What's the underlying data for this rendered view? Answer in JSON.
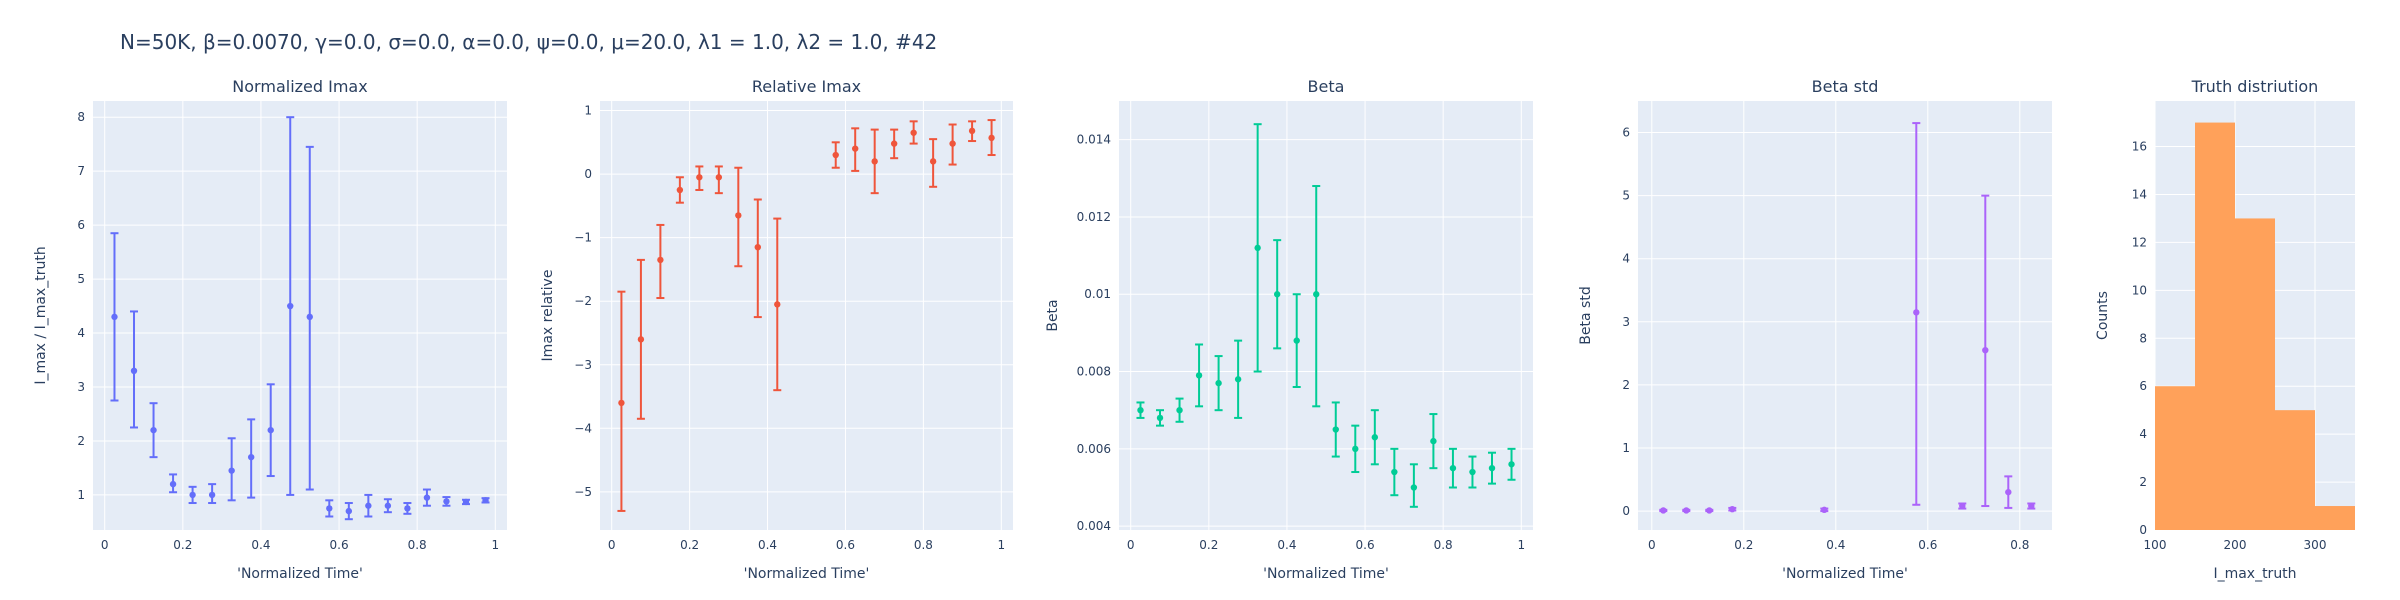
{
  "main_title": "N=50K, β=0.0070, γ=0.0, σ=0.0,  α=0.0, ψ=0.0, μ=20.0, λ1 = 1.0, λ2 = 1.0, #42",
  "colors": {
    "plot_bg": "#E5ECF6",
    "grid": "#FFFFFF",
    "text": "#2a3f5f",
    "normalized": "#636EFA",
    "relative": "#EF553B",
    "beta": "#00CC96",
    "beta_std": "#AB63FA",
    "hist": "#FFA15A"
  },
  "chart_data": [
    {
      "type": "scatter",
      "title": "Normalized Imax",
      "xlabel": "'Normalized Time'",
      "ylabel": "I_max / I_max_truth",
      "xlim": [
        -0.03,
        1.03
      ],
      "ylim": [
        0.35,
        8.3
      ],
      "xticks": [
        0,
        0.2,
        0.4,
        0.6,
        0.8,
        1
      ],
      "xtick_labels": [
        "0",
        "0.2",
        "0.4",
        "0.6",
        "0.8",
        "1"
      ],
      "yticks": [
        1,
        2,
        3,
        4,
        5,
        6,
        7,
        8
      ],
      "ytick_labels": [
        "1",
        "2",
        "3",
        "4",
        "5",
        "6",
        "7",
        "8"
      ],
      "grid": true,
      "color_key": "normalized",
      "points": [
        {
          "x": 0.025,
          "y": 4.3,
          "lo": 2.75,
          "hi": 5.85
        },
        {
          "x": 0.075,
          "y": 3.3,
          "lo": 2.25,
          "hi": 4.4
        },
        {
          "x": 0.125,
          "y": 2.2,
          "lo": 1.7,
          "hi": 2.7
        },
        {
          "x": 0.175,
          "y": 1.2,
          "lo": 1.05,
          "hi": 1.38
        },
        {
          "x": 0.225,
          "y": 1.0,
          "lo": 0.85,
          "hi": 1.15
        },
        {
          "x": 0.275,
          "y": 1.0,
          "lo": 0.85,
          "hi": 1.2
        },
        {
          "x": 0.325,
          "y": 1.45,
          "lo": 0.9,
          "hi": 2.05
        },
        {
          "x": 0.375,
          "y": 1.7,
          "lo": 0.95,
          "hi": 2.4
        },
        {
          "x": 0.425,
          "y": 2.2,
          "lo": 1.35,
          "hi": 3.05
        },
        {
          "x": 0.475,
          "y": 4.5,
          "lo": 1.0,
          "hi": 8.0
        },
        {
          "x": 0.525,
          "y": 4.3,
          "lo": 1.1,
          "hi": 7.45
        },
        {
          "x": 0.575,
          "y": 0.75,
          "lo": 0.6,
          "hi": 0.9
        },
        {
          "x": 0.625,
          "y": 0.7,
          "lo": 0.55,
          "hi": 0.85
        },
        {
          "x": 0.675,
          "y": 0.8,
          "lo": 0.6,
          "hi": 1.0
        },
        {
          "x": 0.725,
          "y": 0.8,
          "lo": 0.68,
          "hi": 0.92
        },
        {
          "x": 0.775,
          "y": 0.75,
          "lo": 0.65,
          "hi": 0.85
        },
        {
          "x": 0.825,
          "y": 0.95,
          "lo": 0.8,
          "hi": 1.1
        },
        {
          "x": 0.875,
          "y": 0.88,
          "lo": 0.8,
          "hi": 0.96
        },
        {
          "x": 0.925,
          "y": 0.87,
          "lo": 0.83,
          "hi": 0.91
        },
        {
          "x": 0.975,
          "y": 0.9,
          "lo": 0.86,
          "hi": 0.94
        }
      ]
    },
    {
      "type": "scatter",
      "title": "Relative Imax",
      "xlabel": "'Normalized Time'",
      "ylabel": "Imax relative",
      "xlim": [
        -0.03,
        1.03
      ],
      "ylim": [
        -5.6,
        1.15
      ],
      "xticks": [
        0,
        0.2,
        0.4,
        0.6,
        0.8,
        1
      ],
      "xtick_labels": [
        "0",
        "0.2",
        "0.4",
        "0.6",
        "0.8",
        "1"
      ],
      "yticks": [
        -5,
        -4,
        -3,
        -2,
        -1,
        0,
        1
      ],
      "ytick_labels": [
        "−5",
        "−4",
        "−3",
        "−2",
        "−1",
        "0",
        "1"
      ],
      "grid": true,
      "color_key": "relative",
      "points": [
        {
          "x": 0.025,
          "y": -3.6,
          "lo": -5.3,
          "hi": -1.85
        },
        {
          "x": 0.075,
          "y": -2.6,
          "lo": -3.85,
          "hi": -1.35
        },
        {
          "x": 0.125,
          "y": -1.35,
          "lo": -1.95,
          "hi": -0.8
        },
        {
          "x": 0.175,
          "y": -0.25,
          "lo": -0.45,
          "hi": -0.05
        },
        {
          "x": 0.225,
          "y": -0.05,
          "lo": -0.25,
          "hi": 0.12
        },
        {
          "x": 0.275,
          "y": -0.05,
          "lo": -0.3,
          "hi": 0.12
        },
        {
          "x": 0.325,
          "y": -0.65,
          "lo": -1.45,
          "hi": 0.1
        },
        {
          "x": 0.375,
          "y": -1.15,
          "lo": -2.25,
          "hi": -0.4
        },
        {
          "x": 0.425,
          "y": -2.05,
          "lo": -3.4,
          "hi": -0.7
        },
        {
          "x": 0.575,
          "y": 0.3,
          "lo": 0.1,
          "hi": 0.5
        },
        {
          "x": 0.625,
          "y": 0.4,
          "lo": 0.05,
          "hi": 0.72
        },
        {
          "x": 0.675,
          "y": 0.2,
          "lo": -0.3,
          "hi": 0.7
        },
        {
          "x": 0.725,
          "y": 0.48,
          "lo": 0.25,
          "hi": 0.7
        },
        {
          "x": 0.775,
          "y": 0.65,
          "lo": 0.48,
          "hi": 0.83
        },
        {
          "x": 0.825,
          "y": 0.2,
          "lo": -0.2,
          "hi": 0.55
        },
        {
          "x": 0.875,
          "y": 0.48,
          "lo": 0.15,
          "hi": 0.78
        },
        {
          "x": 0.925,
          "y": 0.68,
          "lo": 0.52,
          "hi": 0.83
        },
        {
          "x": 0.975,
          "y": 0.57,
          "lo": 0.3,
          "hi": 0.85
        }
      ]
    },
    {
      "type": "scatter",
      "title": "Beta",
      "xlabel": "'Normalized Time'",
      "ylabel": "Beta",
      "xlim": [
        -0.03,
        1.03
      ],
      "ylim": [
        0.0039,
        0.015
      ],
      "xticks": [
        0,
        0.2,
        0.4,
        0.6,
        0.8,
        1
      ],
      "xtick_labels": [
        "0",
        "0.2",
        "0.4",
        "0.6",
        "0.8",
        "1"
      ],
      "yticks": [
        0.004,
        0.006,
        0.008,
        0.01,
        0.012,
        0.014
      ],
      "ytick_labels": [
        "0.004",
        "0.006",
        "0.008",
        "0.01",
        "0.012",
        "0.014"
      ],
      "grid": true,
      "color_key": "beta",
      "points": [
        {
          "x": 0.025,
          "y": 0.007,
          "lo": 0.0068,
          "hi": 0.0072
        },
        {
          "x": 0.075,
          "y": 0.0068,
          "lo": 0.0066,
          "hi": 0.007
        },
        {
          "x": 0.125,
          "y": 0.007,
          "lo": 0.0067,
          "hi": 0.0073
        },
        {
          "x": 0.175,
          "y": 0.0079,
          "lo": 0.0071,
          "hi": 0.0087
        },
        {
          "x": 0.225,
          "y": 0.0077,
          "lo": 0.007,
          "hi": 0.0084
        },
        {
          "x": 0.275,
          "y": 0.0078,
          "lo": 0.0068,
          "hi": 0.0088
        },
        {
          "x": 0.325,
          "y": 0.0112,
          "lo": 0.008,
          "hi": 0.0144
        },
        {
          "x": 0.375,
          "y": 0.01,
          "lo": 0.0086,
          "hi": 0.0114
        },
        {
          "x": 0.425,
          "y": 0.0088,
          "lo": 0.0076,
          "hi": 0.01
        },
        {
          "x": 0.475,
          "y": 0.01,
          "lo": 0.0071,
          "hi": 0.0128
        },
        {
          "x": 0.525,
          "y": 0.0065,
          "lo": 0.0058,
          "hi": 0.0072
        },
        {
          "x": 0.575,
          "y": 0.006,
          "lo": 0.0054,
          "hi": 0.0066
        },
        {
          "x": 0.625,
          "y": 0.0063,
          "lo": 0.0056,
          "hi": 0.007
        },
        {
          "x": 0.675,
          "y": 0.0054,
          "lo": 0.0048,
          "hi": 0.006
        },
        {
          "x": 0.725,
          "y": 0.005,
          "lo": 0.0045,
          "hi": 0.0056
        },
        {
          "x": 0.775,
          "y": 0.0062,
          "lo": 0.0055,
          "hi": 0.0069
        },
        {
          "x": 0.825,
          "y": 0.0055,
          "lo": 0.005,
          "hi": 0.006
        },
        {
          "x": 0.875,
          "y": 0.0054,
          "lo": 0.005,
          "hi": 0.0058
        },
        {
          "x": 0.925,
          "y": 0.0055,
          "lo": 0.0051,
          "hi": 0.0059
        },
        {
          "x": 0.975,
          "y": 0.0056,
          "lo": 0.0052,
          "hi": 0.006
        }
      ]
    },
    {
      "type": "scatter",
      "title": "Beta std",
      "xlabel": "'Normalized Time'",
      "ylabel": "Beta std",
      "xlim": [
        -0.03,
        0.87
      ],
      "ylim": [
        -0.3,
        6.5
      ],
      "xticks": [
        0,
        0.2,
        0.4,
        0.6,
        0.8
      ],
      "xtick_labels": [
        "0",
        "0.2",
        "0.4",
        "0.6",
        "0.8"
      ],
      "yticks": [
        0,
        1,
        2,
        3,
        4,
        5,
        6
      ],
      "ytick_labels": [
        "0",
        "1",
        "2",
        "3",
        "4",
        "5",
        "6"
      ],
      "grid": true,
      "color_key": "beta_std",
      "points": [
        {
          "x": 0.025,
          "y": 0.01,
          "lo": 0.0,
          "hi": 0.02
        },
        {
          "x": 0.075,
          "y": 0.01,
          "lo": 0.0,
          "hi": 0.02
        },
        {
          "x": 0.125,
          "y": 0.01,
          "lo": 0.0,
          "hi": 0.02
        },
        {
          "x": 0.175,
          "y": 0.03,
          "lo": 0.01,
          "hi": 0.05
        },
        {
          "x": 0.375,
          "y": 0.02,
          "lo": 0.0,
          "hi": 0.04
        },
        {
          "x": 0.575,
          "y": 3.15,
          "lo": 0.1,
          "hi": 6.15
        },
        {
          "x": 0.675,
          "y": 0.08,
          "lo": 0.04,
          "hi": 0.12
        },
        {
          "x": 0.725,
          "y": 2.55,
          "lo": 0.08,
          "hi": 5.0
        },
        {
          "x": 0.775,
          "y": 0.3,
          "lo": 0.05,
          "hi": 0.55
        },
        {
          "x": 0.825,
          "y": 0.08,
          "lo": 0.04,
          "hi": 0.12
        }
      ]
    },
    {
      "type": "bar",
      "title": "Truth distriution",
      "xlabel": "I_max_truth",
      "ylabel": "Counts",
      "xlim": [
        100,
        350
      ],
      "ylim": [
        0,
        17.9
      ],
      "xticks": [
        100,
        200,
        300
      ],
      "xtick_labels": [
        "100",
        "200",
        "300"
      ],
      "yticks": [
        0,
        2,
        4,
        6,
        8,
        10,
        12,
        14,
        16
      ],
      "ytick_labels": [
        "0",
        "2",
        "4",
        "6",
        "8",
        "10",
        "12",
        "14",
        "16"
      ],
      "grid": true,
      "color_key": "hist",
      "bins": [
        {
          "x0": 100,
          "x1": 150,
          "count": 6
        },
        {
          "x0": 150,
          "x1": 200,
          "count": 17
        },
        {
          "x0": 200,
          "x1": 250,
          "count": 13
        },
        {
          "x0": 250,
          "x1": 300,
          "count": 5
        },
        {
          "x0": 300,
          "x1": 350,
          "count": 1
        }
      ]
    }
  ]
}
